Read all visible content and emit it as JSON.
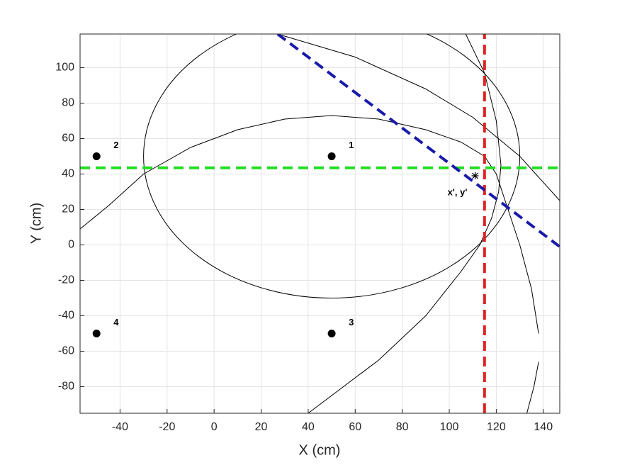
{
  "chart_data": {
    "type": "scatter",
    "xlabel": "X (cm)",
    "ylabel": "Y (cm)",
    "xlim": [
      -57,
      147
    ],
    "ylim": [
      -95,
      119
    ],
    "xticks": [
      -40,
      -20,
      0,
      20,
      40,
      60,
      80,
      100,
      120,
      140
    ],
    "yticks": [
      -80,
      -60,
      -40,
      -20,
      0,
      20,
      40,
      60,
      80,
      100
    ],
    "grid": true,
    "points": [
      {
        "label": "1",
        "x": 50,
        "y": 50
      },
      {
        "label": "2",
        "x": -50,
        "y": 50
      },
      {
        "label": "3",
        "x": 50,
        "y": -50
      },
      {
        "label": "4",
        "x": -50,
        "y": -50
      }
    ],
    "point_color": "#000000",
    "estimate": {
      "label": "x', y'",
      "x": 111,
      "y": 39
    },
    "circles": [
      {
        "cx": 50,
        "cy": 50,
        "r": 80,
        "color": "#000000"
      }
    ],
    "curves": [
      {
        "color": "#000000",
        "x": [
          -57,
          -45,
          -30,
          -10,
          10,
          30,
          50,
          70,
          90,
          105,
          115,
          120,
          125,
          130,
          135,
          138
        ],
        "y": [
          9,
          22,
          40,
          55,
          65,
          71,
          73,
          71,
          65,
          58,
          50,
          40,
          20,
          0,
          -25,
          -50
        ]
      },
      {
        "color": "#000000",
        "x": [
          27,
          60,
          90,
          110,
          130,
          147
        ],
        "y": [
          119,
          106,
          88,
          72,
          50,
          25
        ]
      },
      {
        "color": "#000000",
        "x": [
          107,
          115,
          120,
          122,
          121,
          118,
          113,
          105,
          90,
          70,
          40
        ],
        "y": [
          119,
          97,
          70,
          45,
          30,
          15,
          0,
          -15,
          -40,
          -65,
          -95
        ]
      },
      {
        "color": "#000000",
        "x": [
          138,
          136,
          133
        ],
        "y": [
          -66,
          -80,
          -95
        ]
      }
    ],
    "lines": [
      {
        "color": "#22dd22",
        "dash": true,
        "x": [
          -57,
          147
        ],
        "y": [
          43.5,
          43.5
        ]
      },
      {
        "color": "#dd2222",
        "dash": true,
        "x": [
          115,
          115
        ],
        "y": [
          -95,
          119
        ]
      },
      {
        "color": "#1a1aaa",
        "dash": true,
        "x": [
          27,
          147
        ],
        "y": [
          119,
          -1
        ]
      }
    ]
  }
}
